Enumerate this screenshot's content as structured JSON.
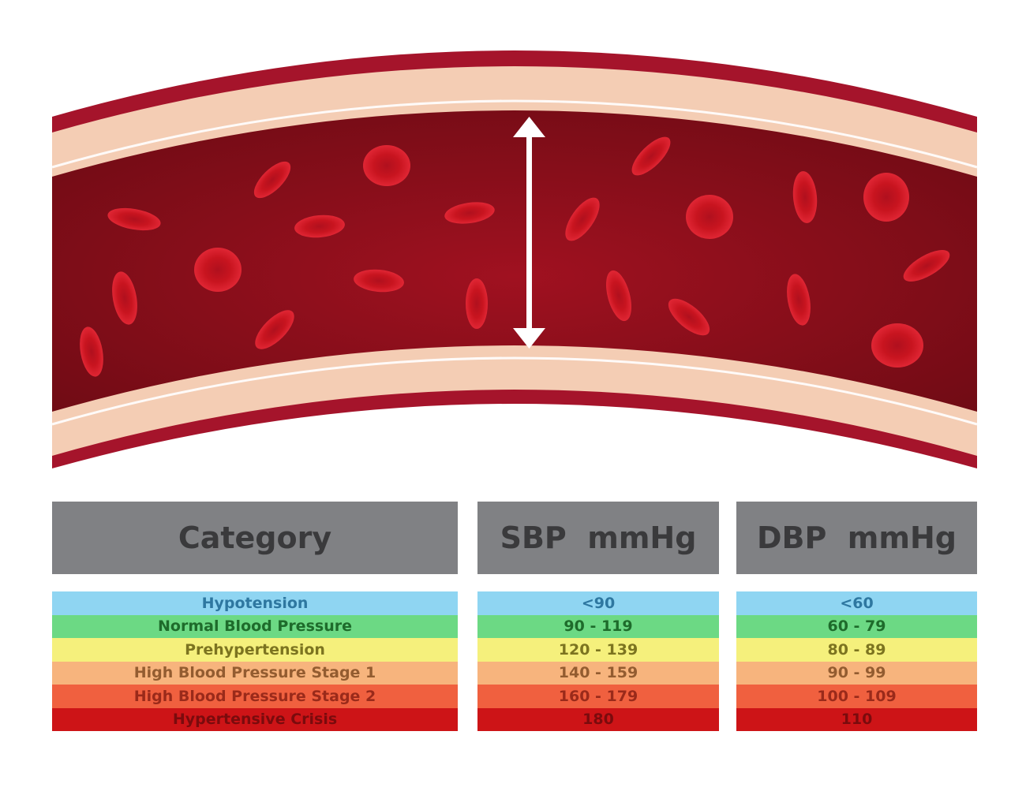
{
  "table": {
    "headers": [
      "Category",
      "SBP  mmHg",
      "DBP  mmHg"
    ],
    "rows": [
      {
        "category": "Hypotension",
        "sbp": "<90",
        "dbp": "<60",
        "bg": "#8fd5f2",
        "fg": "#2e77a0"
      },
      {
        "category": "Normal Blood Pressure",
        "sbp": "90 - 119",
        "dbp": "60 - 79",
        "bg": "#6cd984",
        "fg": "#1e6b2b"
      },
      {
        "category": "Prehypertension",
        "sbp": "120 - 139",
        "dbp": "80 - 89",
        "bg": "#f5f07c",
        "fg": "#7c7420"
      },
      {
        "category": "High Blood Pressure Stage 1",
        "sbp": "140 - 159",
        "dbp": "90 - 99",
        "bg": "#f7b47d",
        "fg": "#935c30"
      },
      {
        "category": "High Blood Pressure Stage 2",
        "sbp": "160 - 179",
        "dbp": "100 - 109",
        "bg": "#f0603f",
        "fg": "#9a2a1a"
      },
      {
        "category": "Hypertensive Crisis",
        "sbp": "180",
        "dbp": "110",
        "bg": "#cd1417",
        "fg": "#7a0b0d"
      }
    ]
  },
  "colors": {
    "vessel_outer": "#a5142b",
    "vessel_wall": "#f4cdb4",
    "blood": "#8a0f1c",
    "cell": "#d41f2f",
    "header_bg": "#808184",
    "header_text": "#3a3a3c"
  },
  "icons": [
    "double-arrow-icon",
    "red-blood-cell-icon"
  ]
}
